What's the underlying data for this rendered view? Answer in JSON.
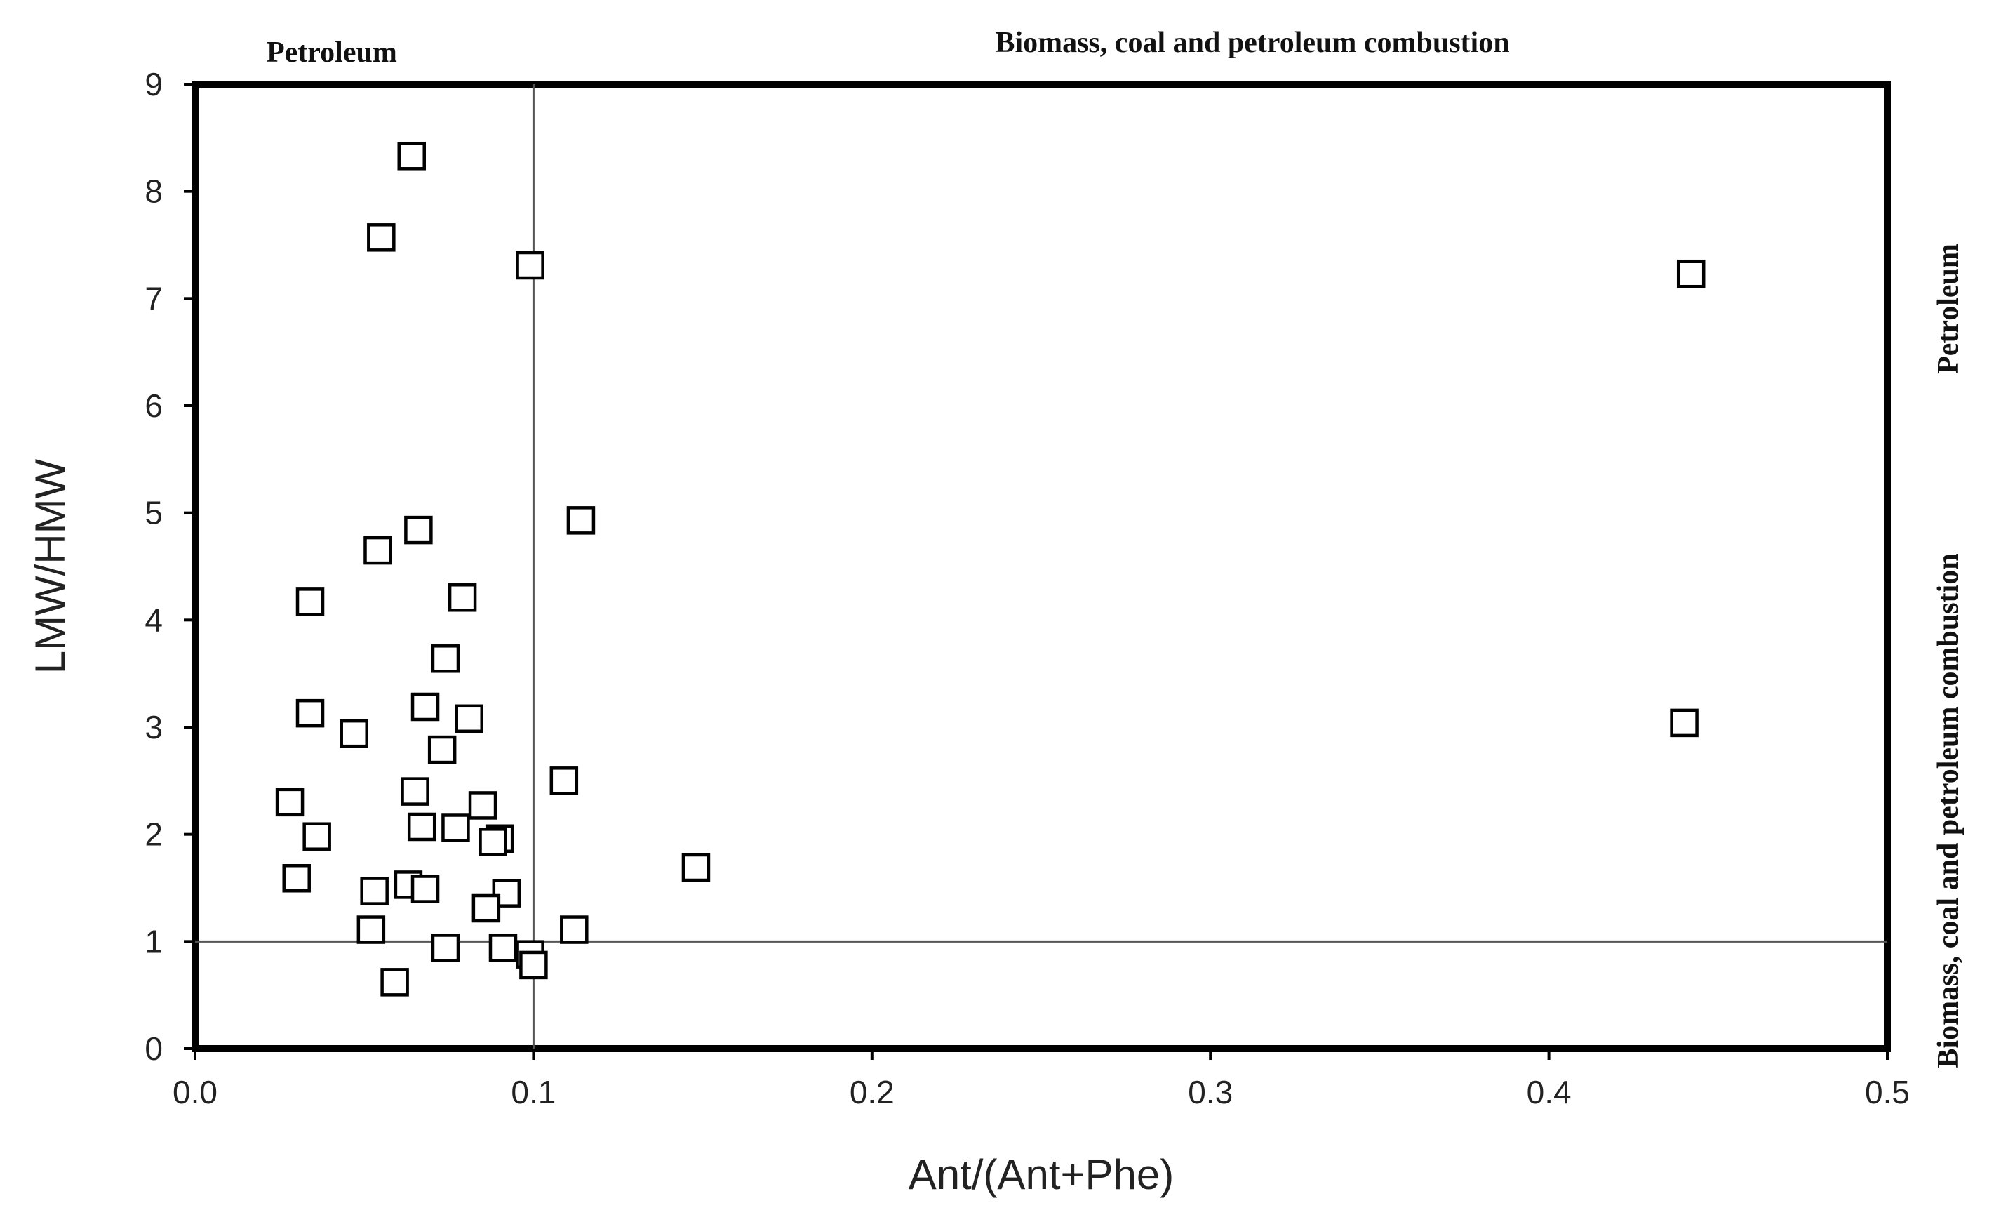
{
  "chart_data": {
    "type": "scatter",
    "title": "",
    "xlabel": "Ant/(Ant+Phe)",
    "ylabel": "LMW/HMW",
    "xlim": [
      0.0,
      0.5
    ],
    "ylim": [
      0,
      9
    ],
    "x_ticks": [
      "0.0",
      "0.1",
      "0.2",
      "0.3",
      "0.4",
      "0.5"
    ],
    "y_ticks": [
      "0",
      "1",
      "2",
      "3",
      "4",
      "5",
      "6",
      "7",
      "8",
      "9"
    ],
    "grid": false,
    "thresholds": {
      "x": 0.1,
      "y": 1
    },
    "region_labels": {
      "top_left": "Petroleum",
      "top_right": "Biomass, coal and petroleum combustion",
      "right_upper": "Petroleum",
      "right_lower": "Biomass, coal and petroleum combustion"
    },
    "series": [
      {
        "marker": "square",
        "color": "#000000",
        "points": [
          [
            0.064,
            8.33
          ],
          [
            0.055,
            7.57
          ],
          [
            0.099,
            7.31
          ],
          [
            0.442,
            7.23
          ],
          [
            0.114,
            4.93
          ],
          [
            0.066,
            4.84
          ],
          [
            0.054,
            4.65
          ],
          [
            0.079,
            4.21
          ],
          [
            0.034,
            4.17
          ],
          [
            0.074,
            3.64
          ],
          [
            0.068,
            3.19
          ],
          [
            0.034,
            3.13
          ],
          [
            0.081,
            3.08
          ],
          [
            0.44,
            3.04
          ],
          [
            0.047,
            2.94
          ],
          [
            0.073,
            2.79
          ],
          [
            0.109,
            2.5
          ],
          [
            0.065,
            2.4
          ],
          [
            0.028,
            2.3
          ],
          [
            0.085,
            2.27
          ],
          [
            0.067,
            2.07
          ],
          [
            0.077,
            2.06
          ],
          [
            0.09,
            1.96
          ],
          [
            0.036,
            1.98
          ],
          [
            0.088,
            1.93
          ],
          [
            0.148,
            1.69
          ],
          [
            0.03,
            1.59
          ],
          [
            0.063,
            1.53
          ],
          [
            0.053,
            1.47
          ],
          [
            0.068,
            1.49
          ],
          [
            0.092,
            1.45
          ],
          [
            0.086,
            1.31
          ],
          [
            0.052,
            1.11
          ],
          [
            0.112,
            1.11
          ],
          [
            0.074,
            0.94
          ],
          [
            0.091,
            0.94
          ],
          [
            0.099,
            0.88
          ],
          [
            0.1,
            0.78
          ],
          [
            0.059,
            0.62
          ]
        ]
      }
    ]
  }
}
